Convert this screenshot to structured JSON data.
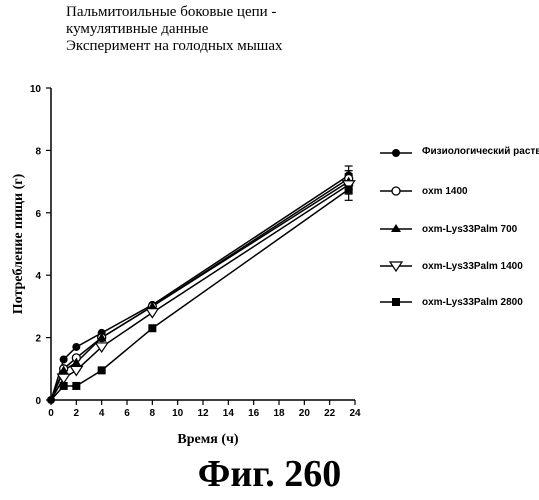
{
  "title_lines": [
    "Пальмитоильные боковые цепи -",
    "кумулятивные данные",
    "Эксперимент на голодных мышах"
  ],
  "figure_caption": "Фиг. 260",
  "chart_data": {
    "type": "line",
    "xlabel": "Время (ч)",
    "ylabel": "Потребление пищи (г)",
    "xlim": [
      0,
      24
    ],
    "ylim": [
      0,
      10
    ],
    "xticks": [
      "0",
      "2",
      "4",
      "6",
      "8",
      "10",
      "12",
      "14",
      "16",
      "18",
      "20",
      "22",
      "24"
    ],
    "yticks": [
      "0",
      "2",
      "4",
      "6",
      "8",
      "10"
    ],
    "grid": false,
    "legend_position": "right",
    "series": [
      {
        "name": "Физиологический раствор",
        "marker": "filled-circle",
        "points": [
          [
            0,
            0
          ],
          [
            1,
            1.3
          ],
          [
            2,
            1.7
          ],
          [
            4,
            2.15
          ],
          [
            8,
            3.05
          ],
          [
            23.5,
            7.2
          ]
        ],
        "error_at_last": 0.3
      },
      {
        "name": "oxm 1400",
        "marker": "open-circle",
        "points": [
          [
            0,
            0
          ],
          [
            1,
            1.0
          ],
          [
            2,
            1.35
          ],
          [
            4,
            2.0
          ],
          [
            8,
            3.0
          ],
          [
            23.5,
            7.1
          ]
        ],
        "error_at_last": 0.25
      },
      {
        "name": "oxm-Lys33Palm 700",
        "marker": "filled-triangle",
        "points": [
          [
            0,
            0
          ],
          [
            1,
            0.95
          ],
          [
            2,
            1.2
          ],
          [
            4,
            2.0
          ],
          [
            8,
            3.0
          ],
          [
            23.5,
            7.0
          ]
        ],
        "error_at_last": 0.25
      },
      {
        "name": "oxm-Lys33Palm 1400",
        "marker": "open-triangle-down",
        "points": [
          [
            0,
            0
          ],
          [
            1,
            0.7
          ],
          [
            2,
            0.95
          ],
          [
            4,
            1.7
          ],
          [
            8,
            2.8
          ],
          [
            23.5,
            6.9
          ]
        ],
        "error_at_last": 0.3
      },
      {
        "name": "oxm-Lys33Palm 2800",
        "marker": "filled-square",
        "points": [
          [
            0,
            0
          ],
          [
            1,
            0.45
          ],
          [
            2,
            0.45
          ],
          [
            4,
            0.95
          ],
          [
            8,
            2.3
          ],
          [
            23.5,
            6.75
          ]
        ],
        "error_at_last": 0.35
      }
    ]
  }
}
